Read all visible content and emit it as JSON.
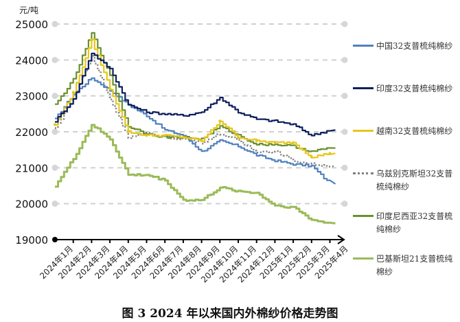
{
  "chart_data": {
    "type": "line",
    "title": "图 3 2024 年以来国内外棉纱价格走势图",
    "ylabel": "元/吨",
    "xlabel": "",
    "ylim": [
      19000,
      25000
    ],
    "yticks": [
      19000,
      20000,
      21000,
      22000,
      23000,
      24000,
      25000
    ],
    "grid": "horizontal dashed",
    "legend_position": "right",
    "categories": [
      "2024年1月",
      "2024年2月",
      "2024年3月",
      "2024年4月",
      "2024年5月",
      "2024年6月",
      "2024年7月",
      "2024年8月",
      "2024年9月",
      "2024年10月",
      "2024年11月",
      "2024年12月",
      "2025年1月",
      "2025年2月",
      "2025年3月",
      "2025年4月"
    ],
    "series": [
      {
        "name": "中国32支普梳纯棉纱",
        "color": "#4f81bd",
        "style": "solid",
        "values": [
          22350,
          23050,
          23500,
          23150,
          22750,
          22450,
          22050,
          21900,
          21450,
          21750,
          21600,
          21350,
          21200,
          21100,
          21050,
          20550
        ]
      },
      {
        "name": "印度32支普梳纯棉纱",
        "color": "#0d1f5c",
        "style": "solid",
        "values": [
          22300,
          22900,
          24200,
          23750,
          22750,
          22550,
          22500,
          22450,
          22550,
          22950,
          22550,
          22350,
          22300,
          22200,
          21900,
          22050
        ]
      },
      {
        "name": "越南32支普梳纯棉纱",
        "color": "#e6c619",
        "style": "solid-marker",
        "values": [
          22200,
          23100,
          24550,
          23200,
          22000,
          21900,
          21900,
          21850,
          21750,
          22300,
          21850,
          21750,
          21700,
          21700,
          21300,
          21400
        ]
      },
      {
        "name": "乌兹别克斯坦32支普梳纯棉纱",
        "color": "#808080",
        "style": "dotted",
        "values": [
          22100,
          22950,
          24100,
          22900,
          21850,
          21950,
          21850,
          21800,
          21700,
          21950,
          21750,
          21450,
          21450,
          21200,
          21100,
          21050
        ]
      },
      {
        "name": "印度尼西亚32支普梳纯棉纱",
        "color": "#6a8f2e",
        "style": "solid",
        "values": [
          22750,
          23450,
          24750,
          23550,
          22150,
          21950,
          21850,
          21850,
          21800,
          22150,
          21900,
          21650,
          21650,
          21600,
          21450,
          21550
        ]
      },
      {
        "name": "巴基斯坦21支普梳纯棉纱",
        "color": "#9bbb59",
        "style": "solid",
        "values": [
          20500,
          21250,
          22200,
          21800,
          20800,
          20800,
          20650,
          20100,
          20100,
          20450,
          20350,
          20300,
          19950,
          19900,
          19550,
          19450
        ]
      }
    ]
  },
  "axis": {
    "unit_label": "元/吨",
    "y_tick_labels": [
      "25000",
      "24000",
      "23000",
      "22000",
      "21000",
      "20000",
      "19000"
    ]
  },
  "legend": {
    "items": [
      {
        "label": "中国32支普梳纯棉纱"
      },
      {
        "label": "印度32支普梳纯棉纱"
      },
      {
        "label": "越南32支普梳纯棉纱"
      },
      {
        "label": "乌兹别克斯坦32支普梳纯棉纱"
      },
      {
        "label": "印度尼西亚32支普梳纯棉纱"
      },
      {
        "label": "巴基斯坦21支普梳纯棉纱"
      }
    ]
  },
  "caption": "图 3 2024 年以来国内外棉纱价格走势图"
}
